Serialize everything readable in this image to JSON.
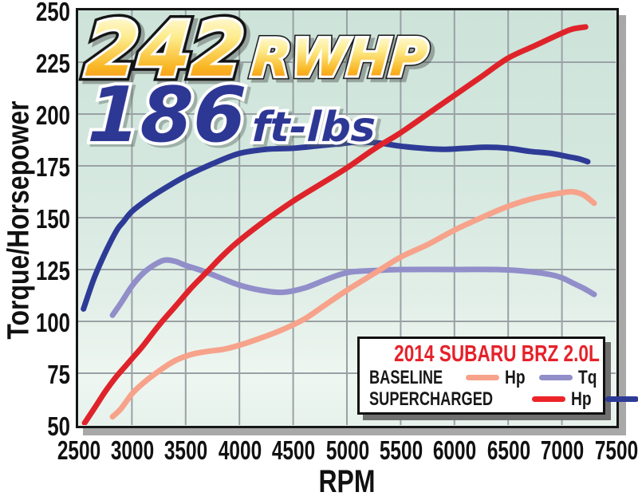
{
  "chart_data": {
    "type": "line",
    "title": "2014 SUBARU BRZ 2.0L",
    "xlabel": "RPM",
    "ylabel": "Torque/Horsepower",
    "xlim": [
      2500,
      7500
    ],
    "ylim": [
      50,
      250
    ],
    "x_ticks": [
      "2500",
      "3000",
      "3500",
      "4000",
      "4500",
      "5000",
      "5500",
      "6000",
      "6500",
      "7000",
      "7500"
    ],
    "y_ticks": [
      "250",
      "225",
      "200",
      "175",
      "150",
      "125",
      "100",
      "75",
      "50"
    ],
    "grid": true,
    "grid_color": "#9aa1a5",
    "legend_position": "bottom-right",
    "annotations": {
      "hp": {
        "value": "242",
        "unit": "RWHP"
      },
      "tq": {
        "value": "186",
        "unit": "ft-lbs"
      }
    },
    "series": [
      {
        "name": "Baseline Tq",
        "color": "#918ec9",
        "points": [
          [
            2820,
            103
          ],
          [
            2900,
            109
          ],
          [
            3000,
            117
          ],
          [
            3100,
            123
          ],
          [
            3200,
            127
          ],
          [
            3300,
            129.5
          ],
          [
            3400,
            129
          ],
          [
            3500,
            127
          ],
          [
            3650,
            124.5
          ],
          [
            3800,
            121.5
          ],
          [
            4000,
            117.5
          ],
          [
            4200,
            115
          ],
          [
            4400,
            114
          ],
          [
            4600,
            116
          ],
          [
            4800,
            120
          ],
          [
            5000,
            123.5
          ],
          [
            5250,
            124.5
          ],
          [
            5500,
            125
          ],
          [
            6000,
            125
          ],
          [
            6400,
            125
          ],
          [
            6700,
            124
          ],
          [
            6900,
            122.5
          ],
          [
            7000,
            121
          ],
          [
            7100,
            118.5
          ],
          [
            7200,
            116
          ],
          [
            7300,
            113
          ]
        ]
      },
      {
        "name": "Baseline Hp",
        "color": "#f7a28a",
        "points": [
          [
            2820,
            54
          ],
          [
            2900,
            58
          ],
          [
            3000,
            65
          ],
          [
            3100,
            70
          ],
          [
            3250,
            76
          ],
          [
            3400,
            81
          ],
          [
            3550,
            84
          ],
          [
            3700,
            85.5
          ],
          [
            3850,
            86.5
          ],
          [
            4000,
            88.5
          ],
          [
            4200,
            92
          ],
          [
            4400,
            96
          ],
          [
            4600,
            101
          ],
          [
            4800,
            108
          ],
          [
            5000,
            115
          ],
          [
            5250,
            123
          ],
          [
            5500,
            131
          ],
          [
            5750,
            137
          ],
          [
            6000,
            144
          ],
          [
            6250,
            150
          ],
          [
            6500,
            155.5
          ],
          [
            6750,
            159.5
          ],
          [
            7000,
            162
          ],
          [
            7100,
            162.5
          ],
          [
            7200,
            161
          ],
          [
            7300,
            157
          ]
        ]
      },
      {
        "name": "Supercharged Tq",
        "color": "#2e3b96",
        "points": [
          [
            2550,
            106
          ],
          [
            2650,
            121
          ],
          [
            2760,
            134
          ],
          [
            2860,
            144
          ],
          [
            2920,
            148
          ],
          [
            3000,
            153
          ],
          [
            3150,
            159
          ],
          [
            3300,
            164
          ],
          [
            3500,
            170
          ],
          [
            3750,
            176
          ],
          [
            4000,
            181
          ],
          [
            4250,
            183
          ],
          [
            4500,
            183.5
          ],
          [
            4700,
            184.5
          ],
          [
            4900,
            185.5
          ],
          [
            5100,
            186.5
          ],
          [
            5300,
            186
          ],
          [
            5500,
            184.5
          ],
          [
            5700,
            183.5
          ],
          [
            5900,
            183
          ],
          [
            6100,
            183.5
          ],
          [
            6300,
            184
          ],
          [
            6500,
            183.5
          ],
          [
            6700,
            182
          ],
          [
            6900,
            181
          ],
          [
            7050,
            179.5
          ],
          [
            7150,
            178.5
          ],
          [
            7240,
            177
          ]
        ]
      },
      {
        "name": "Supercharged Hp",
        "color": "#df232a",
        "points": [
          [
            2560,
            51
          ],
          [
            2650,
            58
          ],
          [
            2750,
            66
          ],
          [
            2850,
            73
          ],
          [
            2950,
            79
          ],
          [
            3000,
            82
          ],
          [
            3100,
            88
          ],
          [
            3250,
            98
          ],
          [
            3400,
            107
          ],
          [
            3550,
            116
          ],
          [
            3700,
            124
          ],
          [
            3850,
            132
          ],
          [
            4000,
            139
          ],
          [
            4250,
            149
          ],
          [
            4500,
            158
          ],
          [
            4750,
            166
          ],
          [
            5000,
            174
          ],
          [
            5250,
            183
          ],
          [
            5500,
            191
          ],
          [
            5750,
            200
          ],
          [
            6000,
            209
          ],
          [
            6250,
            218
          ],
          [
            6500,
            227
          ],
          [
            6750,
            233
          ],
          [
            7000,
            239
          ],
          [
            7100,
            241
          ],
          [
            7220,
            242
          ]
        ]
      }
    ]
  },
  "legend": {
    "rows": [
      {
        "label": "BASELINE",
        "items": [
          {
            "label": "Hp",
            "color": "#f7a28a"
          },
          {
            "label": "Tq",
            "color": "#918ec9"
          }
        ]
      },
      {
        "label": "SUPERCHARGED",
        "items": [
          {
            "label": "Hp",
            "color": "#ec2428"
          },
          {
            "label": "Tq",
            "color": "#2e3b96"
          }
        ]
      }
    ]
  },
  "colors": {
    "plot_background_top": "#cde3da",
    "plot_background_bottom": "#e7f2ec",
    "plot_border": "#161616",
    "plot_shadow": "#a8a8a8",
    "legend_title": "#e6212a",
    "hp_title_gradient": [
      "#fffde9",
      "#f47d1e"
    ],
    "tq_title_blue": "#2d3794",
    "axis_text": "#111111"
  }
}
